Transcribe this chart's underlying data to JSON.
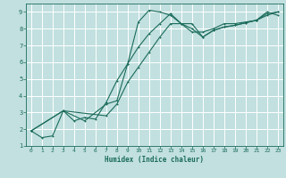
{
  "title": "",
  "xlabel": "Humidex (Indice chaleur)",
  "xlim": [
    -0.5,
    23.5
  ],
  "ylim": [
    1,
    9.5
  ],
  "background_color": "#c2e0e0",
  "grid_color": "#b0d4d4",
  "line_color": "#1a6b5a",
  "line1_x": [
    0,
    1,
    2,
    3,
    4,
    5,
    6,
    7,
    8,
    9,
    10,
    11,
    12,
    13,
    14,
    15,
    16,
    17,
    18,
    19,
    20,
    21,
    22,
    23
  ],
  "line1_y": [
    1.9,
    1.5,
    1.6,
    3.1,
    2.5,
    2.7,
    2.6,
    3.6,
    4.9,
    5.9,
    8.4,
    9.1,
    9.0,
    8.8,
    8.3,
    7.8,
    7.8,
    8.0,
    8.3,
    8.3,
    8.4,
    8.5,
    9.0,
    8.8
  ],
  "line2_x": [
    0,
    3,
    7,
    8,
    9,
    10,
    11,
    12,
    13,
    14,
    15,
    16,
    17,
    18,
    19,
    20,
    21,
    22,
    23
  ],
  "line2_y": [
    1.9,
    3.1,
    2.8,
    3.5,
    4.8,
    5.7,
    6.6,
    7.5,
    8.3,
    8.3,
    8.0,
    7.5,
    7.9,
    8.1,
    8.2,
    8.35,
    8.5,
    8.8,
    9.0
  ],
  "line3_x": [
    0,
    3,
    5,
    7,
    8,
    9,
    10,
    11,
    12,
    13,
    14,
    15,
    16,
    17,
    18,
    19,
    20,
    21,
    22,
    23
  ],
  "line3_y": [
    1.9,
    3.1,
    2.5,
    3.5,
    3.7,
    5.9,
    6.9,
    7.7,
    8.3,
    8.9,
    8.3,
    8.3,
    7.5,
    7.9,
    8.1,
    8.2,
    8.35,
    8.5,
    8.9,
    9.0
  ],
  "yticks": [
    1,
    2,
    3,
    4,
    5,
    6,
    7,
    8,
    9
  ],
  "xticks": [
    0,
    1,
    2,
    3,
    4,
    5,
    6,
    7,
    8,
    9,
    10,
    11,
    12,
    13,
    14,
    15,
    16,
    17,
    18,
    19,
    20,
    21,
    22,
    23
  ]
}
